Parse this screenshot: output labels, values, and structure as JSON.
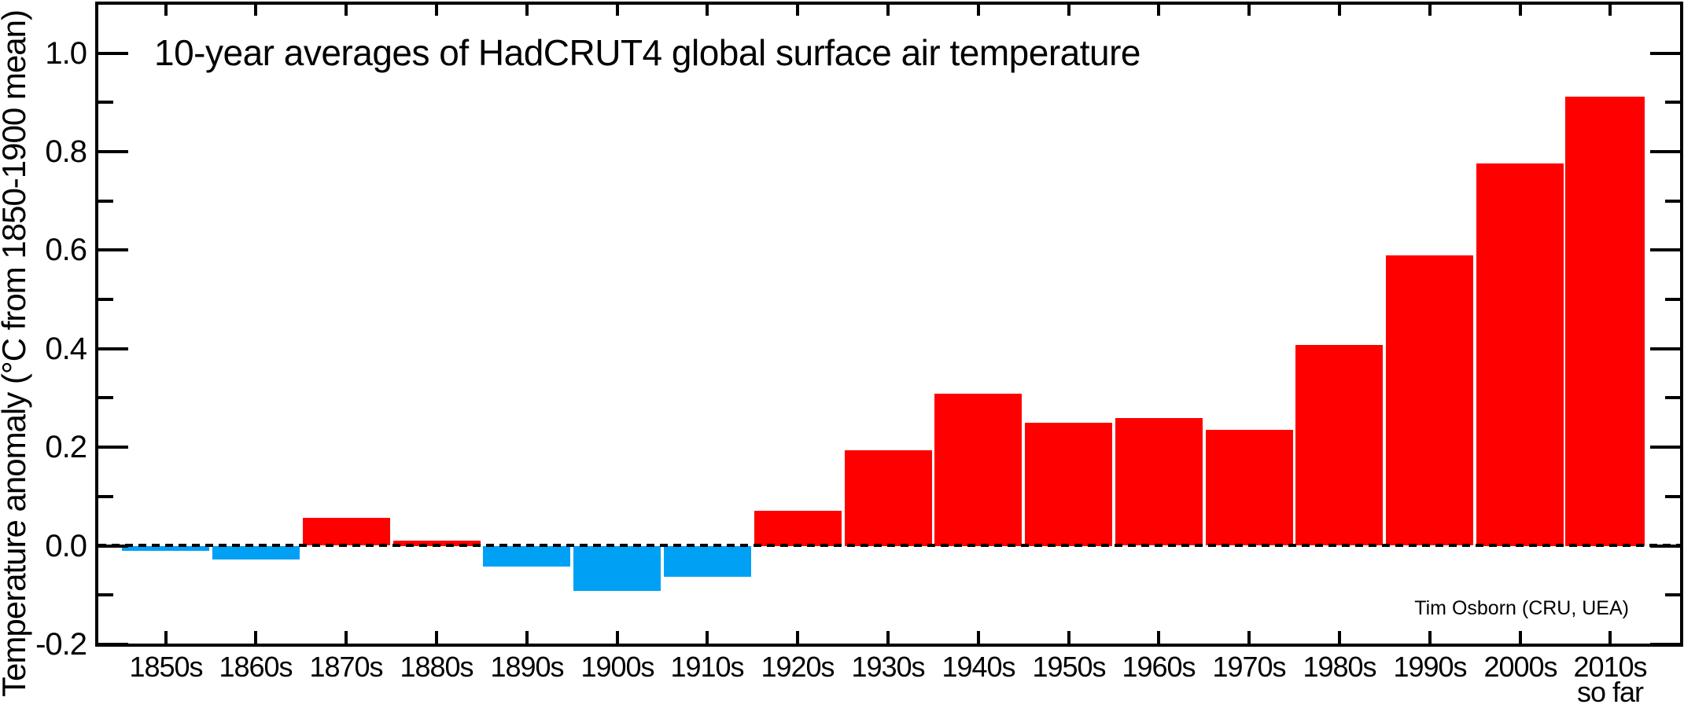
{
  "title": "10-year averages of HadCRUT4 global surface air temperature",
  "attribution": "Tim Osborn (CRU, UEA)",
  "colors": {
    "positive_bar": "#ff0000",
    "negative_bar": "#00a0f5",
    "axis": "#000000",
    "background": "#ffffff"
  },
  "chart_data": {
    "type": "bar",
    "title": "10-year averages of HadCRUT4 global surface air temperature",
    "xlabel": "",
    "ylabel": "Temperature anomaly (°C from 1850-1900 mean)",
    "categories": [
      "1850s",
      "1860s",
      "1870s",
      "1880s",
      "1890s",
      "1900s",
      "1910s",
      "1920s",
      "1930s",
      "1940s",
      "1950s",
      "1960s",
      "1970s",
      "1980s",
      "1990s",
      "2000s",
      "2010s"
    ],
    "last_category_note": "so far",
    "values": [
      -0.01,
      -0.027,
      0.056,
      0.011,
      -0.042,
      -0.091,
      -0.062,
      0.071,
      0.194,
      0.309,
      0.25,
      0.259,
      0.235,
      0.407,
      0.589,
      0.776,
      0.912
    ],
    "units": "°C",
    "baseline": 0.0,
    "ylim": [
      -0.2,
      1.1
    ],
    "y_major_ticks": [
      1.0,
      0.8,
      0.6,
      0.4,
      0.2,
      0.0,
      -0.2
    ],
    "y_major_tick_labels": [
      "1.0",
      "0.8",
      "0.6",
      "0.4",
      "0.2",
      "0.0",
      "-0.2"
    ],
    "y_minor_ticks": [
      0.9,
      0.7,
      0.5,
      0.3,
      0.1,
      -0.1
    ],
    "zero_line_style": "dashed",
    "grid": "off",
    "legend": "none",
    "bar_color_rule": "red for positive anomalies, blue for negative anomalies",
    "attribution": "Tim Osborn (CRU, UEA)"
  }
}
